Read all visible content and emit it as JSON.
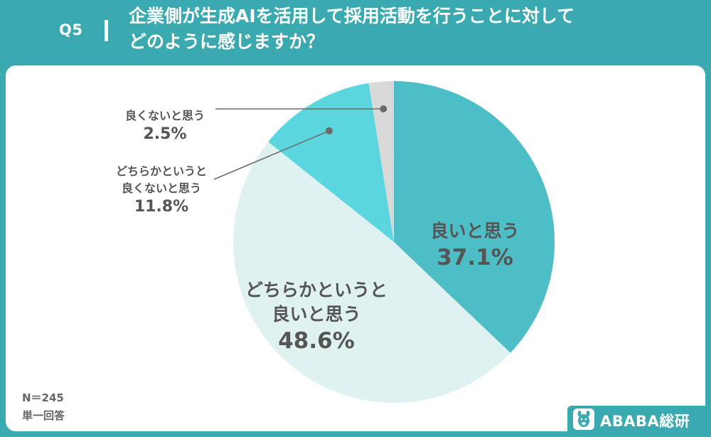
{
  "header": {
    "question_number": "Q5",
    "title": "企業側が生成AIを活用して採用活動を行うことに対して\nどのように感じますか？"
  },
  "chart_data": {
    "type": "pie",
    "start_angle_deg": 0,
    "direction": "clockwise",
    "slices": [
      {
        "label": "良いと思う",
        "value": 37.1,
        "value_label": "37.1%",
        "color": "#4dbdc6"
      },
      {
        "label": "どちらかというと\n良いと思う",
        "value": 48.6,
        "value_label": "48.6%",
        "color": "#dff1f1"
      },
      {
        "label": "どちらかというと\n良くないと思う",
        "value": 11.8,
        "value_label": "11.8%",
        "color": "#5bd6de"
      },
      {
        "label": "良くないと思う",
        "value": 2.5,
        "value_label": "2.5%",
        "color": "#d9d9d9"
      }
    ]
  },
  "footer": {
    "sample_size": "N＝245",
    "answer_type": "単一回答"
  },
  "brand": {
    "name": "ABABA総研",
    "logo_icon": "alpaca-icon"
  }
}
